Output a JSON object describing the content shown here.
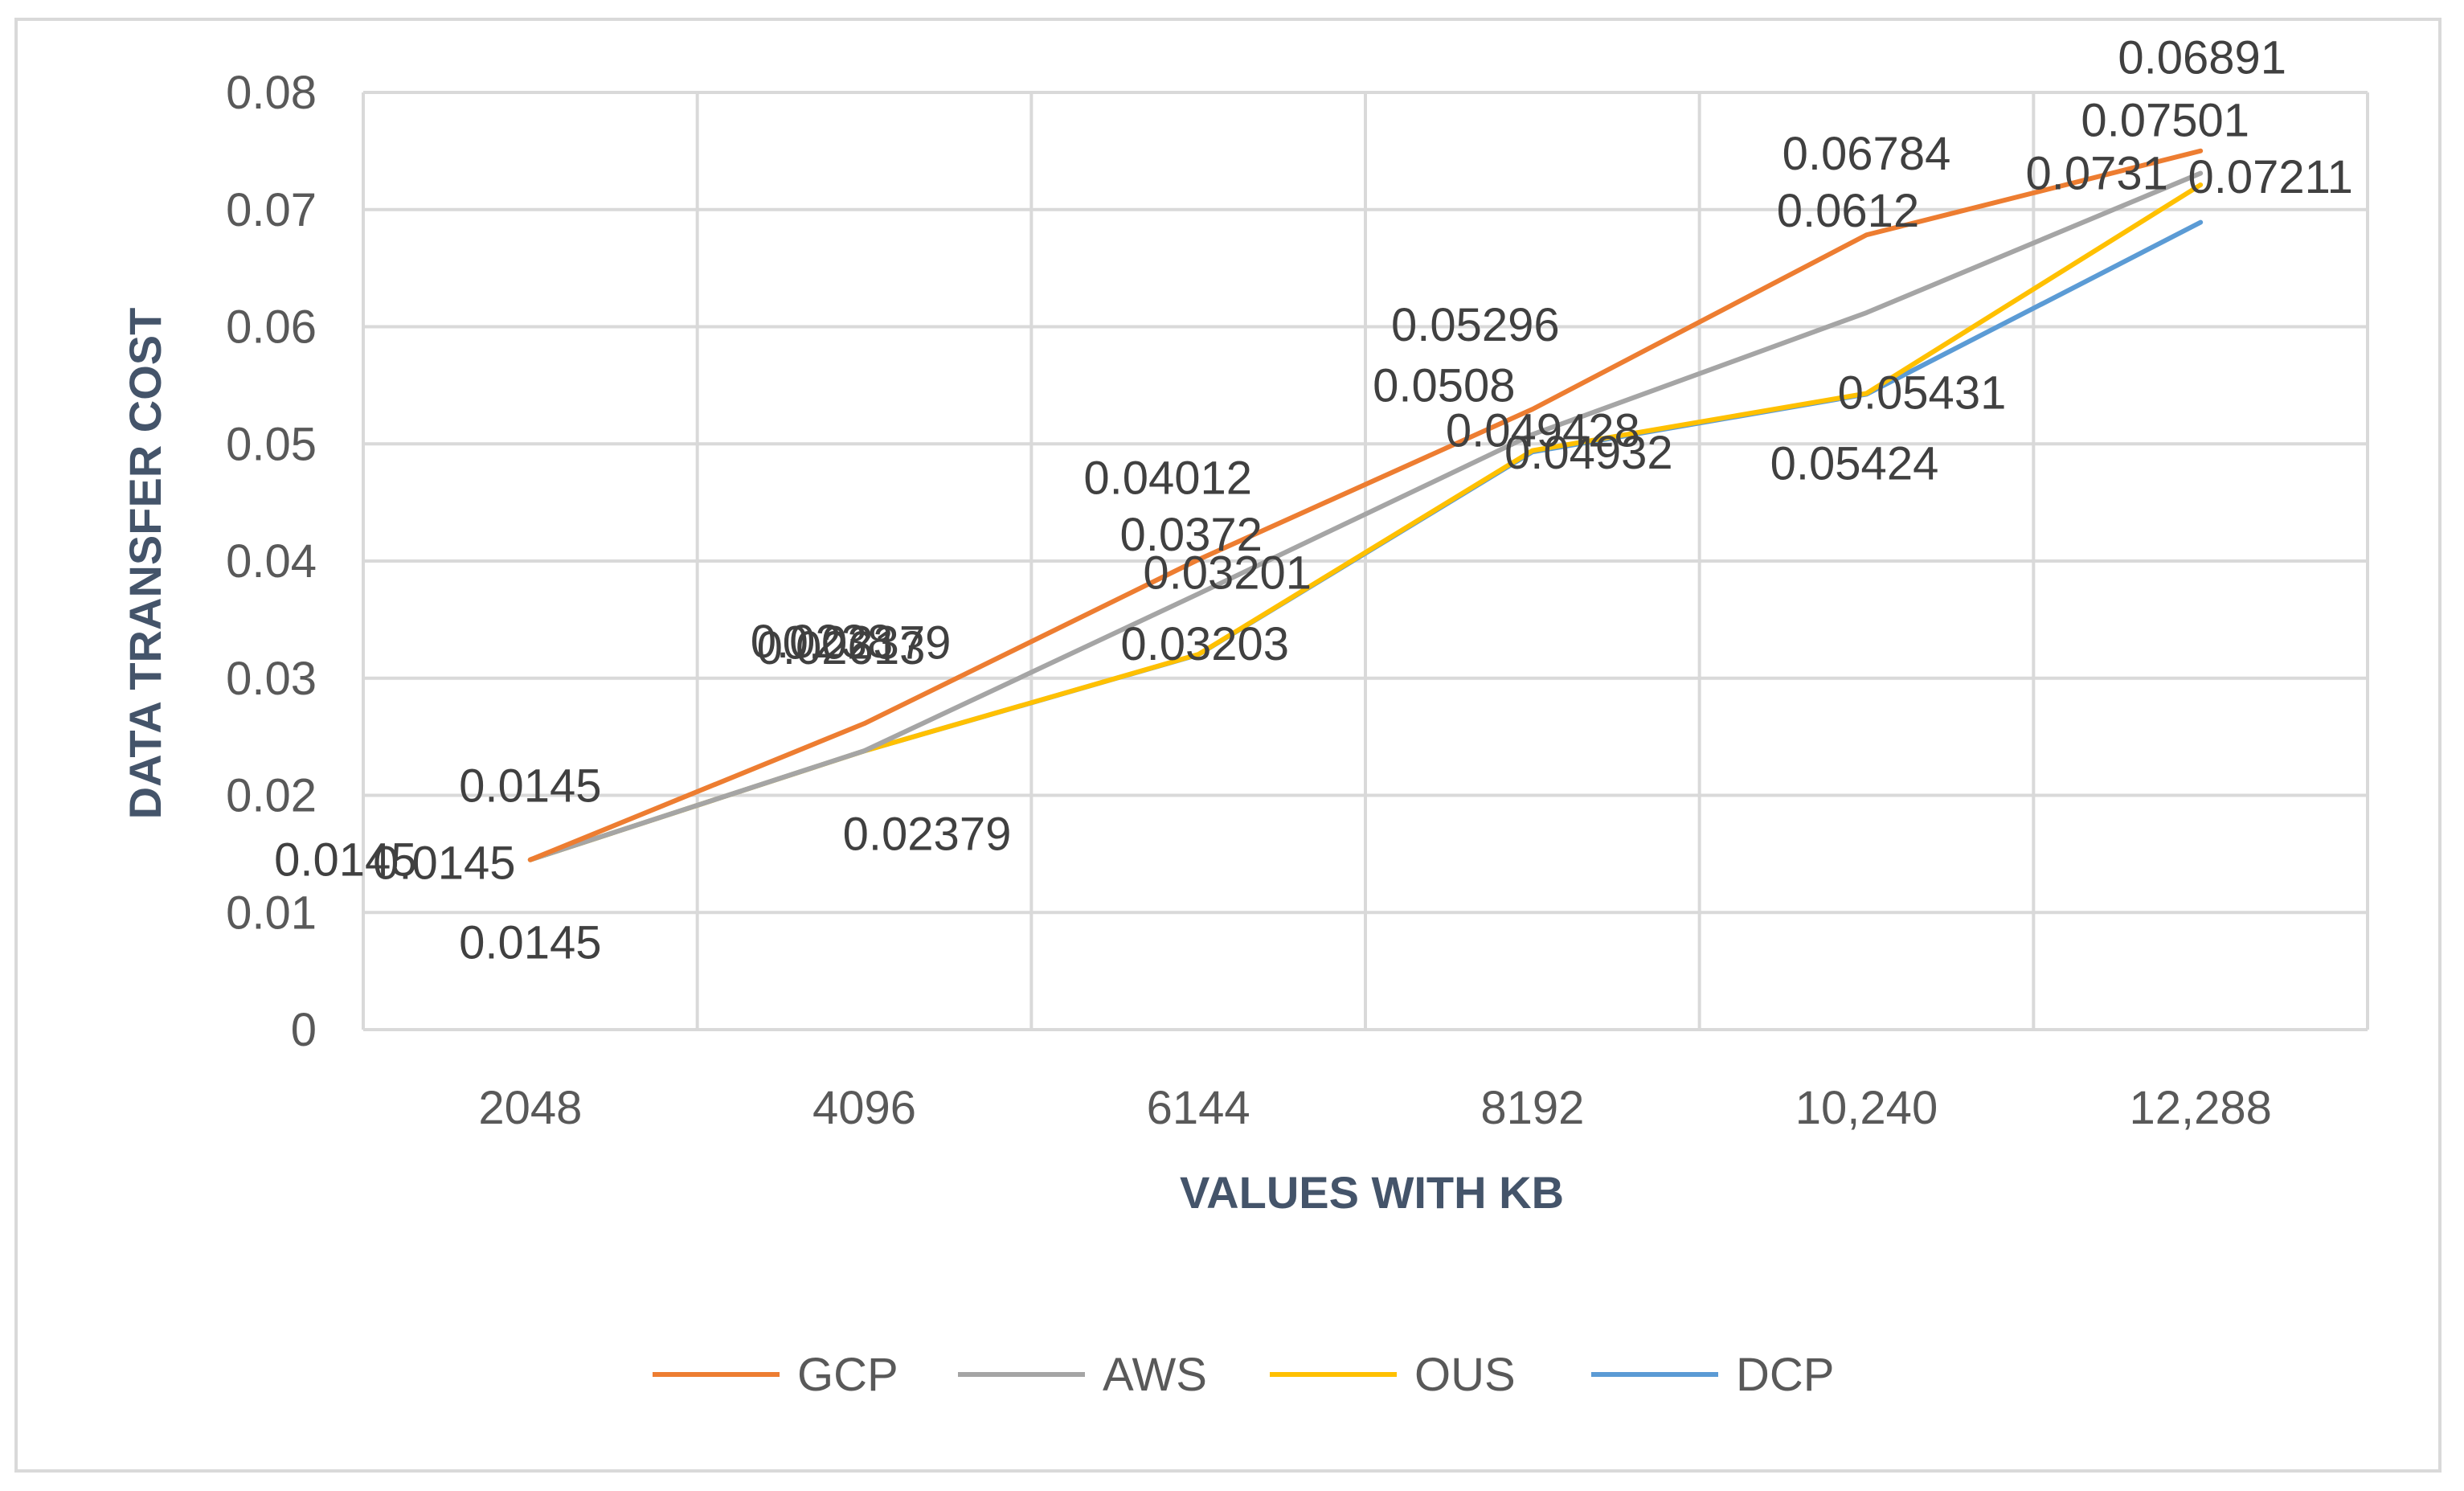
{
  "chart_data": {
    "type": "line",
    "title": "",
    "xlabel": "VALUES WITH KB",
    "ylabel": "DATA TRANSFER COST",
    "categories": [
      "2048",
      "4096",
      "6144",
      "8192",
      "10,240",
      "12,288"
    ],
    "ylim": [
      0,
      0.08
    ],
    "yticks": [
      "0",
      "0.01",
      "0.02",
      "0.03",
      "0.04",
      "0.05",
      "0.06",
      "0.07",
      "0.08"
    ],
    "grid": true,
    "legend_position": "bottom",
    "series": [
      {
        "name": "GCP",
        "color": "#ed7d31",
        "values": [
          0.0145,
          0.02613,
          0.04012,
          0.05296,
          0.06784,
          0.07501
        ],
        "labels": [
          "0.0145",
          "0.02613",
          "0.04012",
          "0.05296",
          "0.06784",
          "0.07501"
        ]
      },
      {
        "name": "AWS",
        "color": "#a5a5a5",
        "values": [
          0.0145,
          0.0238,
          0.0372,
          0.0508,
          0.0612,
          0.0731
        ],
        "labels": [
          "0.0145",
          "0.0238",
          "0.0372",
          "0.0508",
          "0.0612",
          "0.0731"
        ]
      },
      {
        "name": "OUS",
        "color": "#ffc000",
        "values": [
          0.0145,
          0.02379,
          0.03203,
          0.049428,
          0.05431,
          0.07211
        ],
        "labels": [
          "0.0145",
          "0.02379",
          "0.03203",
          "0.049428",
          "0.05431",
          "0.07211"
        ]
      },
      {
        "name": "DCP",
        "color": "#5b9bd5",
        "values": [
          0.0145,
          0.02379,
          0.03201,
          0.04932,
          0.05424,
          0.06891
        ],
        "labels": [
          "0.0145",
          "0.02379",
          "0.03201",
          "0.04932",
          "0.05424",
          "0.06891"
        ]
      }
    ]
  }
}
